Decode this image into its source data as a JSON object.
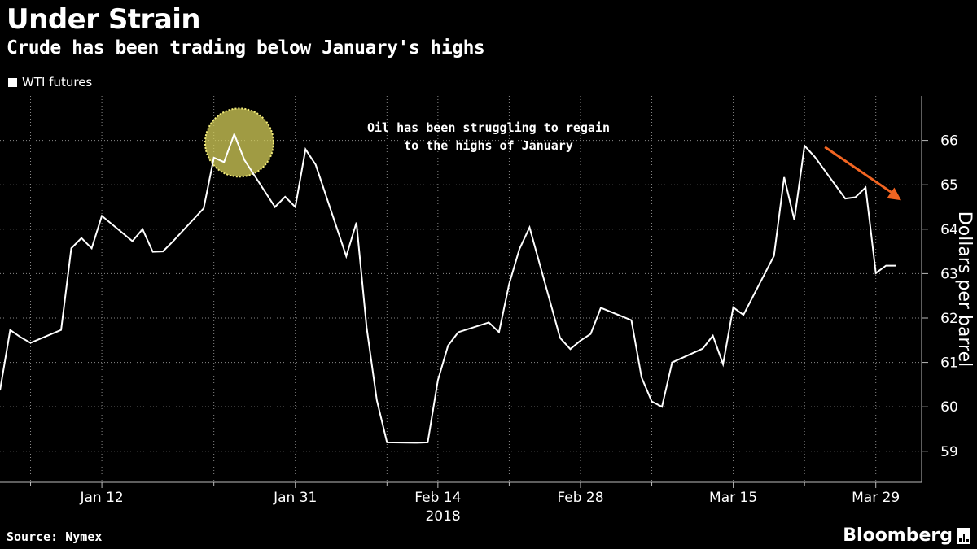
{
  "header": {
    "title": "Under Strain",
    "subtitle": "Crude has been trading below January's highs"
  },
  "footer": {
    "source": "Source: Nymex",
    "brand": "Bloomberg"
  },
  "colors": {
    "background": "#000000",
    "line": "#ffffff",
    "grid": "#8a8a8a",
    "highlight": "#d6cf5a",
    "arrow": "#f26522"
  },
  "chart_data": {
    "type": "line",
    "title": "Under Strain",
    "subtitle": "Crude has been trading below January's highs",
    "xlabel": "2018",
    "ylabel": "Dollars per barrel",
    "ylim": [
      58.3,
      67
    ],
    "yticks": [
      59,
      60,
      61,
      62,
      63,
      64,
      65,
      66
    ],
    "xtick_labels": [
      "Jan 12",
      "Jan 31",
      "Feb 14",
      "Feb 28",
      "Mar 15",
      "Mar 29"
    ],
    "xtick_days": [
      12,
      31,
      45,
      59,
      74,
      88
    ],
    "minor_tick_days": [
      5,
      23,
      40,
      52,
      66,
      81
    ],
    "xlim": [
      2,
      92.5
    ],
    "grid": true,
    "legend": [
      "WTI futures"
    ],
    "legend_position": "top-left",
    "series": [
      {
        "name": "WTI futures",
        "days": [
          2,
          3,
          4,
          5,
          8,
          9,
          10,
          11,
          12,
          15,
          16,
          17,
          18,
          19,
          22,
          23,
          24,
          25,
          26,
          29,
          30,
          31,
          32,
          33,
          36,
          37,
          38,
          39,
          40,
          43,
          44,
          45,
          46,
          47,
          50,
          51,
          52,
          53,
          54,
          57,
          58,
          59,
          60,
          61,
          64,
          65,
          66,
          67,
          68,
          71,
          72,
          73,
          74,
          75,
          78,
          79,
          80,
          81,
          82,
          85,
          86,
          87,
          88,
          89,
          90
        ],
        "values": [
          60.37,
          61.73,
          61.57,
          61.44,
          61.73,
          63.57,
          63.8,
          63.57,
          64.3,
          63.73,
          64.0,
          63.49,
          63.5,
          63.73,
          64.47,
          65.61,
          65.51,
          66.14,
          65.56,
          64.5,
          64.73,
          64.5,
          65.8,
          65.45,
          63.39,
          64.15,
          61.79,
          60.15,
          59.2,
          59.19,
          59.2,
          60.6,
          61.38,
          61.68,
          61.9,
          61.68,
          62.77,
          63.55,
          64.04,
          61.55,
          61.3,
          61.49,
          61.64,
          62.23,
          61.95,
          60.66,
          60.12,
          60.0,
          61.0,
          61.31,
          61.6,
          60.96,
          62.24,
          62.07,
          63.4,
          65.17,
          64.21,
          65.88,
          65.63,
          64.69,
          64.72,
          64.94,
          63.01,
          63.18,
          63.18
        ],
        "display_note": "values plotted at 0.95 scale offset"
      }
    ],
    "annotations": [
      {
        "text_lines": [
          "Oil has been struggling to regain",
          "to the highs of January"
        ],
        "near_day": 57,
        "near_value": 65.9
      },
      {
        "kind": "highlight-circle",
        "day": 25.5,
        "value": 65.95
      },
      {
        "kind": "arrow",
        "from_day": 83,
        "from_value": 65.85,
        "to_day": 90.5,
        "to_value": 64.65
      }
    ]
  }
}
